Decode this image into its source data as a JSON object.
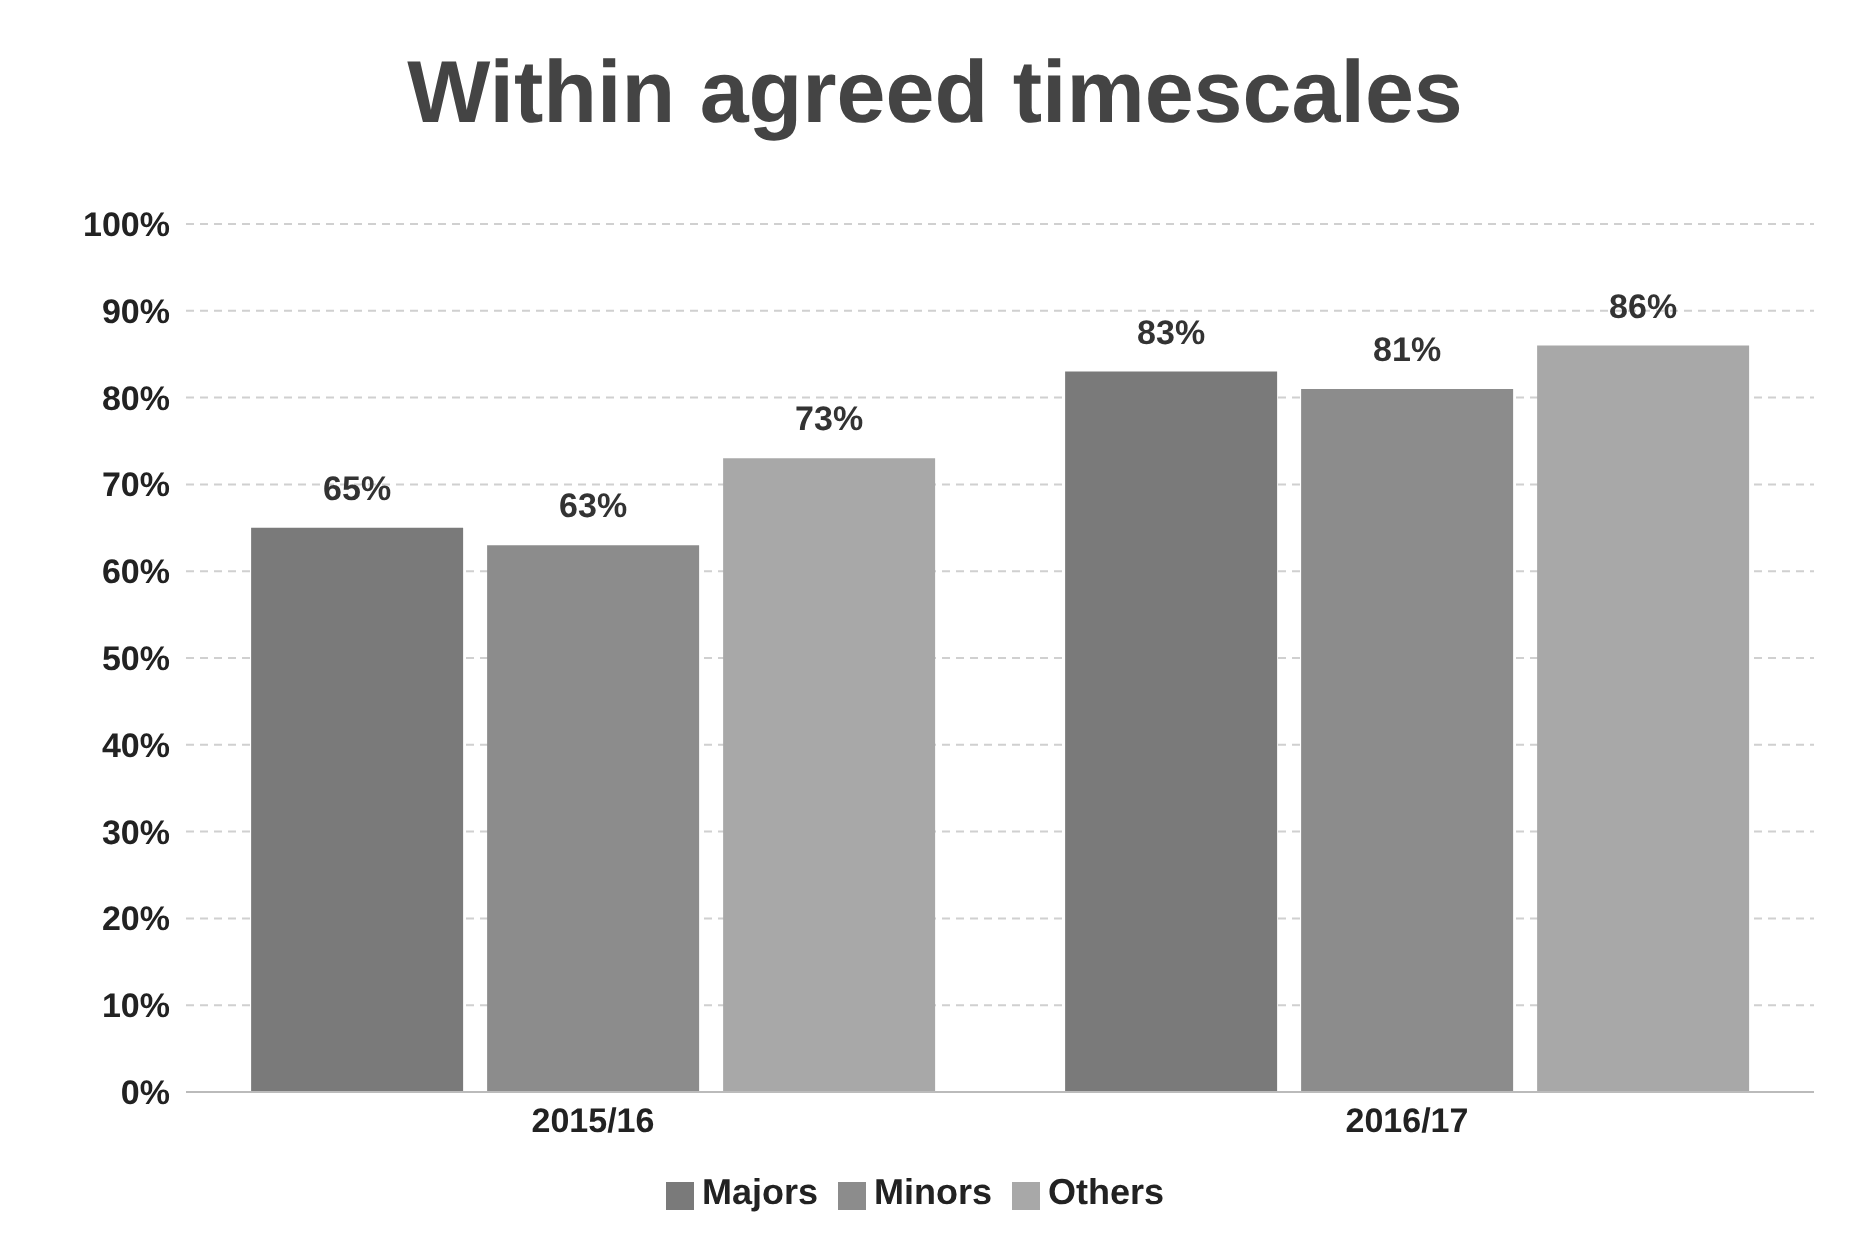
{
  "chart_data": {
    "type": "bar",
    "title": "Within agreed timescales",
    "categories": [
      "2015/16",
      "2016/17"
    ],
    "series": [
      {
        "name": "Majors",
        "color": "#7a7a7a",
        "values": [
          65,
          83
        ],
        "value_labels": [
          "65%",
          "83%"
        ]
      },
      {
        "name": "Minors",
        "color": "#8c8c8c",
        "values": [
          63,
          81
        ],
        "value_labels": [
          "63%",
          "81%"
        ]
      },
      {
        "name": "Others",
        "color": "#a8a8a8",
        "values": [
          73,
          86
        ],
        "value_labels": [
          "73%",
          "86%"
        ]
      }
    ],
    "ylim": [
      0,
      100
    ],
    "yticks": [
      {
        "value": 0,
        "label": "0%"
      },
      {
        "value": 10,
        "label": "10%"
      },
      {
        "value": 20,
        "label": "20%"
      },
      {
        "value": 30,
        "label": "30%"
      },
      {
        "value": 40,
        "label": "40%"
      },
      {
        "value": 50,
        "label": "50%"
      },
      {
        "value": 60,
        "label": "60%"
      },
      {
        "value": 70,
        "label": "70%"
      },
      {
        "value": 80,
        "label": "80%"
      },
      {
        "value": 90,
        "label": "90%"
      },
      {
        "value": 100,
        "label": "100%"
      }
    ],
    "grid": "y",
    "legend": "bottom"
  }
}
